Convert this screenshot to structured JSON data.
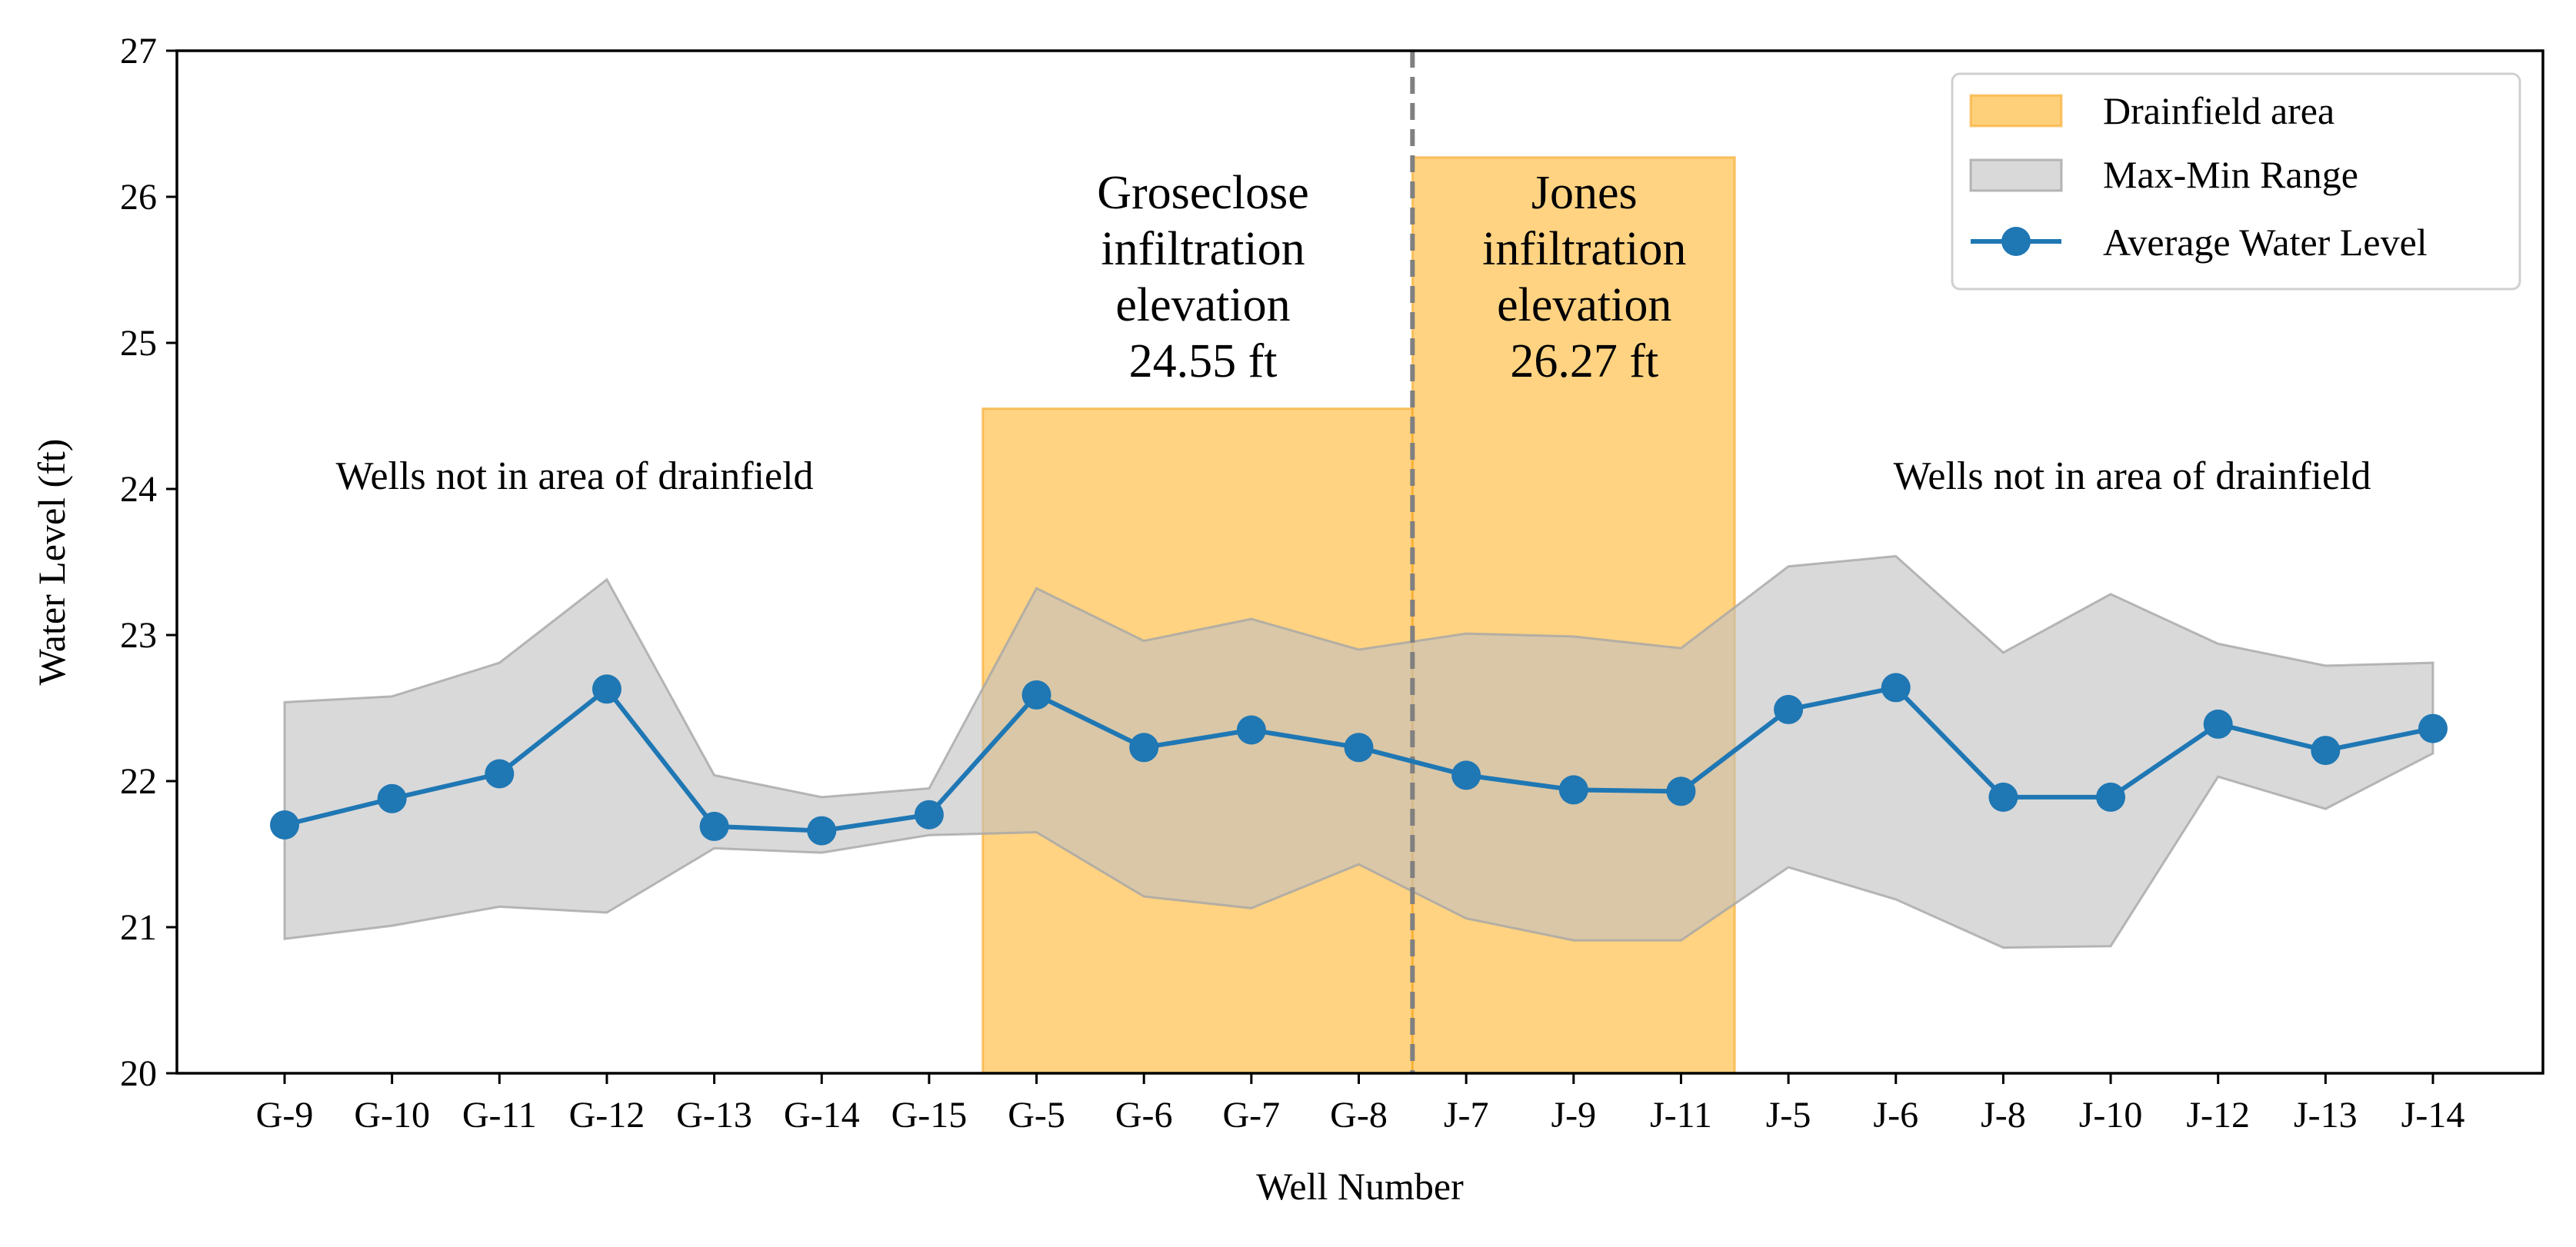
{
  "chart_data": {
    "type": "line",
    "xlabel": "Well Number",
    "ylabel": "Water Level (ft)",
    "ylim": [
      20,
      27
    ],
    "yticks": [
      20,
      21,
      22,
      23,
      24,
      25,
      26,
      27
    ],
    "categories": [
      "G-9",
      "G-10",
      "G-11",
      "G-12",
      "G-13",
      "G-14",
      "G-15",
      "G-5",
      "G-6",
      "G-7",
      "G-8",
      "J-7",
      "J-9",
      "J-11",
      "J-5",
      "J-6",
      "J-8",
      "J-10",
      "J-12",
      "J-13",
      "J-14"
    ],
    "series": [
      {
        "name": "Average Water Level",
        "color": "#1f77b4",
        "values": [
          21.7,
          21.88,
          22.05,
          22.63,
          21.69,
          21.66,
          21.77,
          22.59,
          22.23,
          22.35,
          22.23,
          22.04,
          21.94,
          21.93,
          22.49,
          22.64,
          21.89,
          21.89,
          22.39,
          22.21,
          22.36
        ]
      }
    ],
    "range_band": {
      "name": "Max-Min Range",
      "color": "#bfbfbf",
      "max": [
        22.54,
        22.58,
        22.81,
        23.38,
        22.04,
        21.89,
        21.95,
        23.32,
        22.96,
        23.11,
        22.9,
        23.01,
        22.99,
        22.91,
        23.47,
        23.54,
        22.88,
        23.28,
        22.94,
        22.79,
        22.81
      ],
      "min": [
        20.92,
        21.01,
        21.14,
        21.1,
        21.54,
        21.51,
        21.63,
        21.65,
        21.21,
        21.13,
        21.43,
        21.06,
        20.91,
        20.91,
        21.41,
        21.19,
        20.86,
        20.87,
        22.03,
        21.81,
        22.19
      ]
    },
    "drainfields": [
      {
        "name": "Drainfield area",
        "x_start": 6.5,
        "x_end": 10.5,
        "top": 24.55
      },
      {
        "name": "Drainfield area",
        "x_start": 10.5,
        "x_end": 13.5,
        "top": 26.27
      }
    ],
    "drainfield_color": "#ffc04d",
    "divider_x": 10.5,
    "divider_color": "#808080",
    "annotations": [
      {
        "lines": [
          "Wells not in area of drainfield"
        ],
        "x": 2.7,
        "y": 24.0,
        "size": "small"
      },
      {
        "lines": [
          "Wells not in area of drainfield"
        ],
        "x": 17.2,
        "y": 24.0,
        "size": "small"
      },
      {
        "lines": [
          "Groseclose",
          "infiltration",
          "elevation",
          "24.55 ft"
        ],
        "x": 8.55,
        "y": 25.92,
        "size": "large"
      },
      {
        "lines": [
          "Jones",
          "infiltration",
          "elevation",
          "26.27 ft"
        ],
        "x": 12.1,
        "y": 25.92,
        "size": "large"
      }
    ],
    "legend": {
      "position": "top-right",
      "entries": [
        "Drainfield area",
        "Max-Min Range",
        "Average Water Level"
      ]
    }
  }
}
